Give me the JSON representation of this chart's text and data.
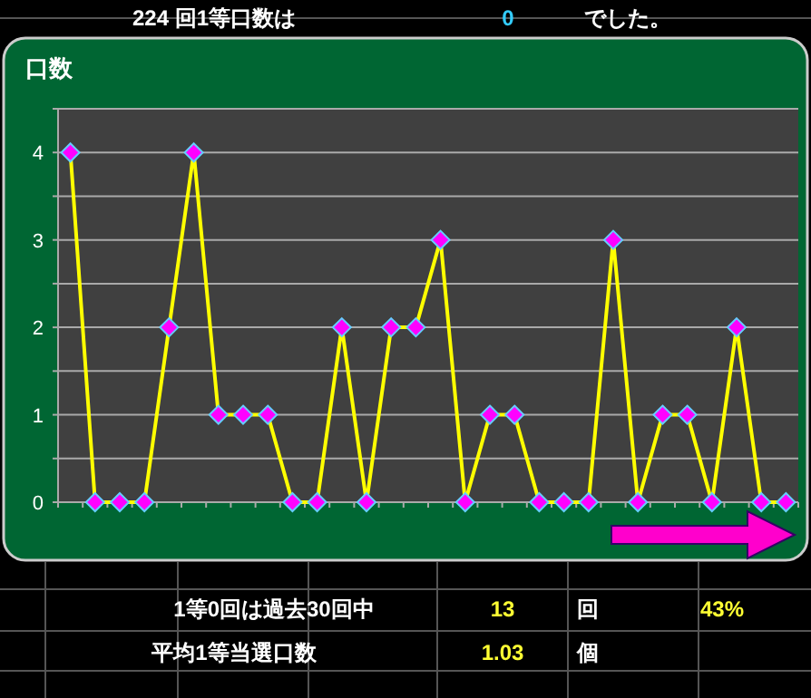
{
  "chart_data": {
    "type": "line",
    "ylabel": "口数",
    "categories": [
      null,
      null,
      null,
      null,
      null,
      null,
      null,
      null,
      null,
      null,
      null,
      null,
      null,
      null,
      null,
      null,
      null,
      null,
      null,
      null,
      null,
      null,
      null,
      null,
      null,
      null,
      null,
      null,
      null,
      null
    ],
    "series": [
      {
        "color": "#ffff00",
        "values": [
          4,
          0,
          0,
          0,
          2,
          4,
          1,
          1,
          1,
          0,
          0,
          2,
          0,
          2,
          2,
          3,
          0,
          1,
          1,
          0,
          0,
          0,
          3,
          0,
          1,
          1,
          0,
          2,
          0,
          0
        ]
      }
    ],
    "ylim": [
      0,
      4.5
    ],
    "yticks": [
      0,
      {
        "value": 0.5,
        "label": null
      },
      1,
      {
        "value": 1.5,
        "label": null
      },
      2,
      {
        "value": 2.5,
        "label": null
      },
      3,
      {
        "value": 3.5,
        "label": null
      },
      4,
      {
        "value": 4.5,
        "label": null
      }
    ],
    "grid": "y",
    "marker": "diamond",
    "line_style": "solid",
    "annotations": [
      "224 回1等口数は",
      "0",
      "でした。",
      "1等0回は過去30回中",
      "13",
      "回",
      "43%",
      "平均1等当選口数",
      "1.03",
      "個"
    ]
  }
}
